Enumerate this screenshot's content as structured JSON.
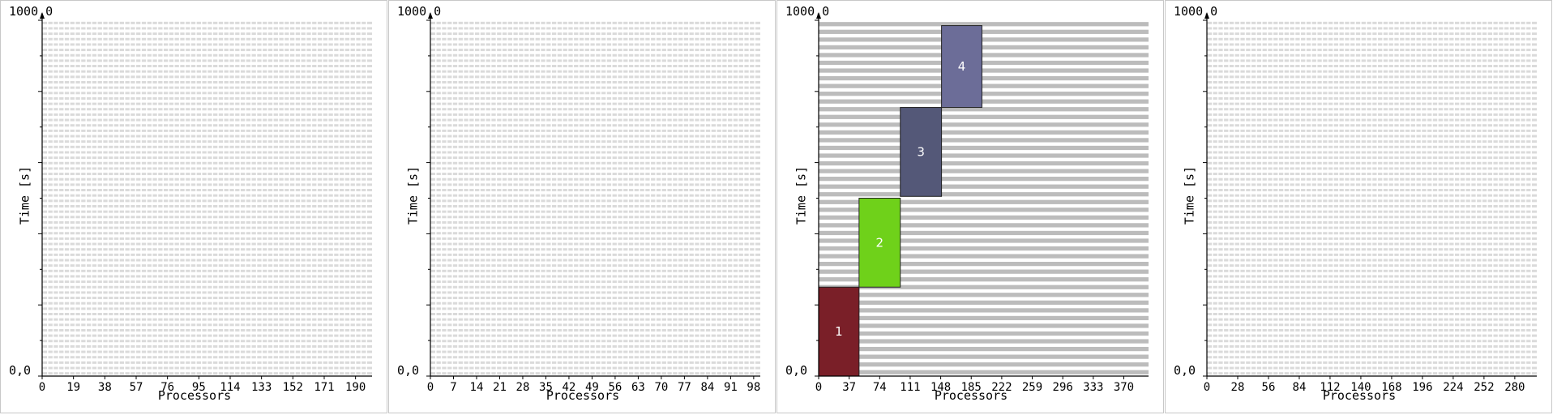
{
  "chart_data": [
    {
      "type": "gantt",
      "xlabel": "Processors",
      "ylabel": "Time [s]",
      "ymin_label": "0,0",
      "ymax_label": "1000,0",
      "ylim": [
        0,
        1000
      ],
      "xmax": 200,
      "xticks": [
        0,
        19,
        38,
        57,
        76,
        95,
        114,
        133,
        152,
        171,
        190
      ],
      "background_rows": 66,
      "jobs": []
    },
    {
      "type": "gantt",
      "xlabel": "Processors",
      "ylabel": "Time [s]",
      "ymin_label": "0,0",
      "ymax_label": "1000,0",
      "ylim": [
        0,
        1000
      ],
      "xmax": 100,
      "xticks": [
        0,
        7,
        14,
        21,
        28,
        35,
        42,
        49,
        56,
        63,
        70,
        77,
        84,
        91,
        98
      ],
      "background_rows": 66,
      "jobs": []
    },
    {
      "type": "gantt",
      "xlabel": "Processors",
      "ylabel": "Time [s]",
      "ymin_label": "0,0",
      "ymax_label": "1000,0",
      "ylim": [
        0,
        1000
      ],
      "xmax": 400,
      "xticks": [
        0,
        37,
        74,
        111,
        148,
        185,
        222,
        259,
        296,
        333,
        370
      ],
      "background_rows": 46,
      "jobs": [
        {
          "label": "1",
          "x0": 0,
          "x1": 49,
          "y0": 0,
          "y1": 250,
          "color": "#7a1f28"
        },
        {
          "label": "2",
          "x0": 49,
          "x1": 99,
          "y0": 250,
          "y1": 500,
          "color": "#6fd11a"
        },
        {
          "label": "3",
          "x0": 99,
          "x1": 149,
          "y0": 505,
          "y1": 755,
          "color": "#545878"
        },
        {
          "label": "4",
          "x0": 149,
          "x1": 198,
          "y0": 755,
          "y1": 985,
          "color": "#6c6d98"
        }
      ]
    },
    {
      "type": "gantt",
      "xlabel": "Processors",
      "ylabel": "Time [s]",
      "ymin_label": "0,0",
      "ymax_label": "1000,0",
      "ylim": [
        0,
        1000
      ],
      "xmax": 300,
      "xticks": [
        0,
        28,
        56,
        84,
        112,
        140,
        168,
        196,
        224,
        252,
        280
      ],
      "background_rows": 66,
      "jobs": []
    }
  ]
}
